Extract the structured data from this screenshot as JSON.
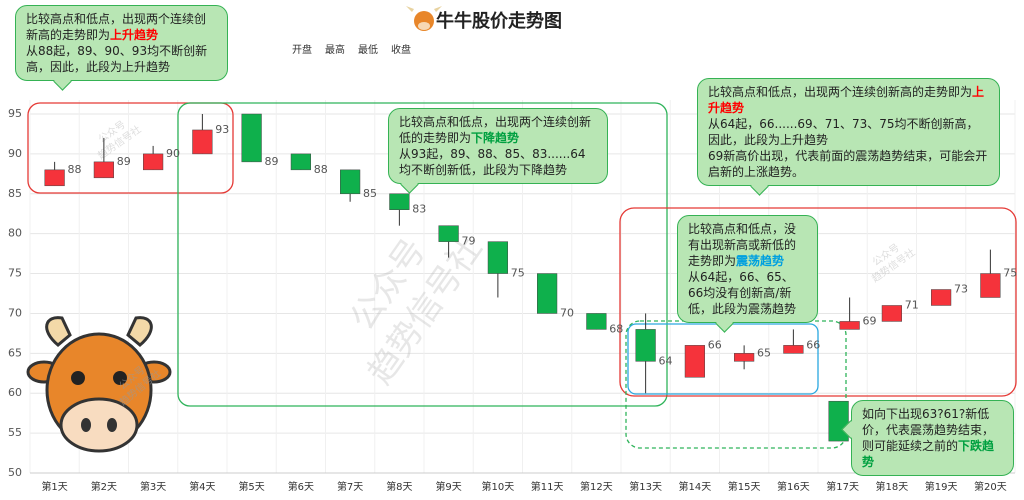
{
  "chart_data": {
    "type": "candlestick",
    "title": "牛牛股价走势图",
    "legend": [
      "开盘",
      "最高",
      "最低",
      "收盘"
    ],
    "watermark": [
      "公众号",
      "趋势信号社"
    ],
    "categories": [
      "第1天",
      "第2天",
      "第3天",
      "第4天",
      "第5天",
      "第6天",
      "第7天",
      "第8天",
      "第9天",
      "第10天",
      "第11天",
      "第12天",
      "第13天",
      "第14天",
      "第15天",
      "第16天",
      "第17天",
      "第18天",
      "第19天",
      "第20天"
    ],
    "open": [
      86,
      87,
      88,
      90,
      95,
      90,
      88,
      85,
      81,
      79,
      75,
      70,
      68,
      62,
      64,
      65,
      68,
      69,
      71,
      72
    ],
    "high": [
      89,
      92,
      91,
      95,
      95,
      90,
      88,
      85,
      81,
      79,
      75,
      70,
      70,
      66,
      66,
      68,
      72,
      71,
      73,
      78
    ],
    "low": [
      86,
      87,
      88,
      90,
      89,
      88,
      84,
      81,
      77,
      72,
      70,
      68,
      60,
      62,
      63,
      65,
      68,
      69,
      71,
      72
    ],
    "close": [
      88,
      89,
      90,
      93,
      89,
      88,
      85,
      83,
      79,
      75,
      70,
      68,
      64,
      66,
      65,
      66,
      69,
      71,
      73,
      75
    ],
    "extra_candle": {
      "category": "第17天",
      "open": 59,
      "high": 59,
      "low": 54,
      "close": 54
    },
    "up_color": "#f5333b",
    "down_color": "#0fb04c",
    "ylim": [
      50,
      95
    ],
    "yticks": [
      50,
      55,
      60,
      65,
      70,
      75,
      80,
      85,
      90,
      95
    ],
    "grid": true,
    "annotations": [
      {
        "paragraphs": [
          [
            {
              "text": "比较高点和低点，出现两个连续创新高的走势即为"
            },
            {
              "text": "上升趋势",
              "color": "#ff0000"
            }
          ],
          [
            {
              "text": "从88起，89、90、93均不断创新高，因此，此段为上升趋势"
            }
          ]
        ]
      },
      {
        "paragraphs": [
          [
            {
              "text": "比较高点和低点，出现两个连续创新低的走势即为"
            },
            {
              "text": "下降趋势",
              "color": "#00a040"
            }
          ],
          [
            {
              "text": "从93起，89、88、85、83......64均不断创新低，此段为下降趋势"
            }
          ]
        ]
      },
      {
        "paragraphs": [
          [
            {
              "text": "比较高点和低点，出现两个连续创新高的走势即为"
            },
            {
              "text": "上升趋势",
              "color": "#ff0000"
            }
          ],
          [
            {
              "text": "从64起，66......69、71、73、75均不断创新高，因此，此段为上升趋势"
            }
          ],
          [
            {
              "text": "69新高价出现，代表前面的震荡趋势结束，可能会开启新的上涨趋势。"
            }
          ]
        ]
      },
      {
        "paragraphs": [
          [
            {
              "text": "比较高点和低点，没有出现新高或新低的走势即为"
            },
            {
              "text": "震荡趋势",
              "color": "#00a0e0"
            }
          ],
          [
            {
              "text": "从64起，66、65、66均没有创新高/新低，此段为震荡趋势"
            }
          ]
        ]
      },
      {
        "paragraphs": [
          [
            {
              "text": "如向下出现63?61?新低价，代表震荡趋势结束，则可能延续之前的"
            },
            {
              "text": "下跌趋势",
              "color": "#00a040"
            }
          ]
        ]
      }
    ]
  }
}
